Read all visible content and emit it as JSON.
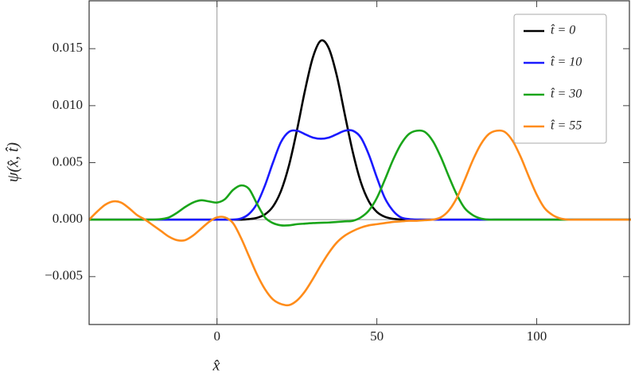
{
  "chart_data": {
    "type": "line",
    "x_label": "x̂",
    "y_label": "ψ(x̂, t̂)",
    "x": [
      -40,
      -37.5,
      -35,
      -32.5,
      -30,
      -27.5,
      -25,
      -22.5,
      -20,
      -17.5,
      -15,
      -12.5,
      -10,
      -7.5,
      -5,
      -2.5,
      0,
      2.5,
      5,
      7.5,
      10,
      12.5,
      15,
      17.5,
      20,
      22.5,
      25,
      27.5,
      30,
      32.5,
      35,
      37.5,
      40,
      42.5,
      45,
      47.5,
      50,
      52.5,
      55,
      57.5,
      60,
      62.5,
      65,
      67.5,
      70,
      72.5,
      75,
      77.5,
      80,
      82.5,
      85,
      87.5,
      90,
      92.5,
      95,
      97.5,
      100,
      102.5,
      105,
      107.5,
      110,
      112.5,
      115,
      117.5,
      120,
      122.5,
      125,
      127.5,
      130
    ],
    "series": [
      {
        "name": "t̂ = 0",
        "color": "#000000",
        "values": [
          0,
          0,
          0,
          0,
          0,
          0,
          0,
          0,
          0,
          0,
          0,
          0,
          0,
          0,
          0,
          0,
          0,
          0,
          0,
          0,
          5e-05,
          0.00016,
          0.00046,
          0.00115,
          0.0025,
          0.00474,
          0.00783,
          0.0113,
          0.01424,
          0.0157,
          0.01502,
          0.0126,
          0.0092,
          0.0059,
          0.00328,
          0.0016,
          0.00068,
          0.00025,
          8e-05,
          2e-05,
          0,
          0,
          0,
          0,
          0,
          0,
          0,
          0,
          0,
          0,
          0,
          0,
          0,
          0,
          0,
          0,
          0,
          0,
          0,
          0,
          0,
          0,
          0,
          0,
          0,
          0,
          0,
          0,
          0
        ]
      },
      {
        "name": "t̂ = 10",
        "color": "#1a1aff",
        "values": [
          0,
          0,
          0,
          0,
          0,
          0,
          0,
          0,
          0,
          0,
          0,
          0,
          0,
          0,
          0,
          0,
          0,
          0,
          0,
          0.0001,
          0.0005,
          0.0014,
          0.003,
          0.005,
          0.0068,
          0.0077,
          0.0078,
          0.0075,
          0.0072,
          0.0071,
          0.0072,
          0.0075,
          0.0078,
          0.0078,
          0.0072,
          0.0057,
          0.0037,
          0.0019,
          0.0008,
          0.0002,
          5e-05,
          0,
          0,
          0,
          0,
          0,
          0,
          0,
          0,
          0,
          0,
          0,
          0,
          0,
          0,
          0,
          0,
          0,
          0,
          0,
          0,
          0,
          0,
          0,
          0,
          0,
          0,
          0,
          0
        ]
      },
      {
        "name": "t̂ = 30",
        "color": "#1aa51a",
        "values": [
          0,
          0,
          0,
          0,
          0,
          0,
          0,
          0,
          0,
          5e-05,
          0.0002,
          0.0006,
          0.0011,
          0.0015,
          0.0017,
          0.0016,
          0.0015,
          0.0018,
          0.0026,
          0.003,
          0.0027,
          0.0014,
          0.0002,
          -0.0003,
          -0.0005,
          -0.0005,
          -0.0004,
          -0.00035,
          -0.0003,
          -0.00027,
          -0.00025,
          -0.0002,
          -0.00015,
          -0.0001,
          0.0002,
          0.0008,
          0.0019,
          0.0035,
          0.0052,
          0.0066,
          0.0075,
          0.0078,
          0.0077,
          0.0069,
          0.0055,
          0.0038,
          0.0022,
          0.001,
          0.0004,
          0.0001,
          0,
          0,
          0,
          0,
          0,
          0,
          0,
          0,
          0,
          0,
          0,
          0,
          0,
          0,
          0,
          0,
          0,
          0,
          0
        ]
      },
      {
        "name": "t̂ = 55",
        "color": "#ff8c1a",
        "values": [
          0,
          0.0007,
          0.0013,
          0.0016,
          0.0015,
          0.001,
          0.0004,
          0,
          -0.0005,
          -0.001,
          -0.0015,
          -0.0018,
          -0.0018,
          -0.0014,
          -0.0008,
          -0.0002,
          0.0002,
          0.0002,
          -0.0003,
          -0.0016,
          -0.0032,
          -0.0048,
          -0.0061,
          -0.007,
          -0.0074,
          -0.0075,
          -0.0071,
          -0.0063,
          -0.0052,
          -0.004,
          -0.0029,
          -0.002,
          -0.0014,
          -0.001,
          -0.0007,
          -0.0005,
          -0.0004,
          -0.0003,
          -0.0002,
          -0.00015,
          -0.0001,
          -0.0001,
          -5e-05,
          0,
          0.0002,
          0.0008,
          0.0019,
          0.0035,
          0.0052,
          0.0066,
          0.0075,
          0.0078,
          0.0077,
          0.0069,
          0.0055,
          0.0038,
          0.0022,
          0.001,
          0.0004,
          0.0001,
          0,
          0,
          0,
          0,
          0,
          0,
          0,
          0,
          0
        ]
      }
    ],
    "xlim": [
      -40,
      129
    ],
    "ylim": [
      -0.0092,
      0.0192
    ],
    "xticks": [
      0,
      50,
      100
    ],
    "yticks": [
      {
        "value": -0.005,
        "label": "−0.005"
      },
      {
        "value": 0,
        "label": "0.000"
      },
      0.005,
      {
        "value": 0.01,
        "label": "0.010"
      },
      0.015
    ],
    "grid": false,
    "legend": "upper right"
  }
}
